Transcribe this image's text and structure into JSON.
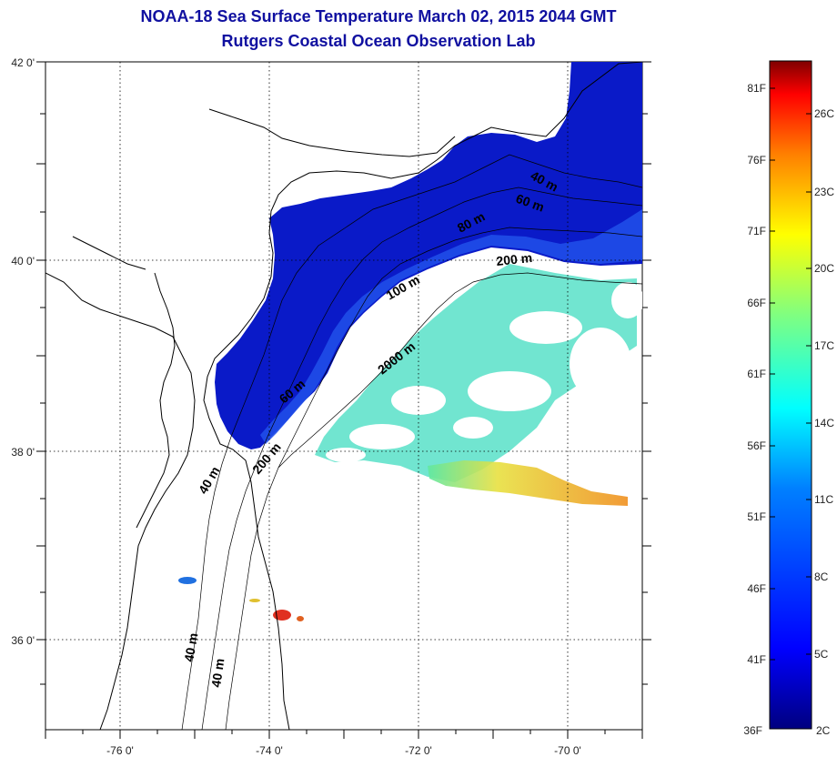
{
  "header": {
    "title": "NOAA-18 Sea Surface Temperature March 02, 2015 2044 GMT",
    "subtitle": "Rutgers Coastal Ocean Observation Lab"
  },
  "map": {
    "lon_labels": [
      "-76 0'",
      "-74 0'",
      "-72 0'",
      "-70 0'"
    ],
    "lat_labels": [
      "42 0'",
      "40 0'",
      "38 0'",
      "36 0'"
    ],
    "depth_contours": [
      "40 m",
      "60 m",
      "80 m",
      "100 m",
      "200 m",
      "2000 m",
      "60 m",
      "200 m",
      "40 m",
      "40 m",
      "40 m"
    ],
    "grid": "dotted"
  },
  "colorbar": {
    "fahrenheit": [
      "81F",
      "76F",
      "71F",
      "66F",
      "61F",
      "56F",
      "51F",
      "46F",
      "41F",
      "36F"
    ],
    "celsius": [
      "26C",
      "23C",
      "20C",
      "17C",
      "14C",
      "11C",
      "8C",
      "5C",
      "2C"
    ],
    "colors": [
      "#7f0000",
      "#ff0000",
      "#ff8000",
      "#ffff00",
      "#80ff80",
      "#00ffff",
      "#0080ff",
      "#0000ff",
      "#00007f"
    ]
  },
  "colors": {
    "title": "#1010a0",
    "cold_water": "#0a1ac8",
    "shelf_water": "#1838e0",
    "gulf_stream": "#50e0c0",
    "warm_patch": "#f0a020"
  }
}
